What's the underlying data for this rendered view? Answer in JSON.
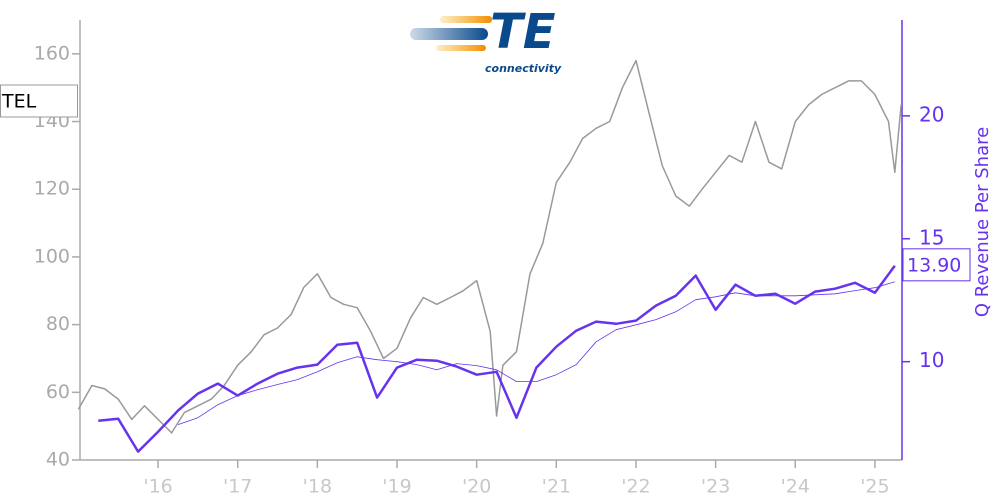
{
  "chart_data": {
    "type": "line",
    "logo": {
      "mark": "TE",
      "tagline": "connectivity"
    },
    "ticker": "TEL",
    "y2label": "Q Revenue Per Share",
    "annotation": "13.90",
    "xlim": [
      2015.02,
      2025.34
    ],
    "xticks": [
      {
        "value": 2016,
        "label": "'16"
      },
      {
        "value": 2017,
        "label": "'17"
      },
      {
        "value": 2018,
        "label": "'18"
      },
      {
        "value": 2019,
        "label": "'19"
      },
      {
        "value": 2020,
        "label": "'20"
      },
      {
        "value": 2021,
        "label": "'21"
      },
      {
        "value": 2022,
        "label": "'22"
      },
      {
        "value": 2023,
        "label": "'23"
      },
      {
        "value": 2024,
        "label": "'24"
      },
      {
        "value": 2025,
        "label": "'25"
      }
    ],
    "ylim": [
      40,
      170
    ],
    "yticks": [
      40,
      60,
      80,
      100,
      120,
      140,
      160
    ],
    "y2lim": [
      6,
      23.9
    ],
    "y2ticks": [
      10,
      15,
      20
    ],
    "series": [
      {
        "color": "#999999",
        "width": 1.5,
        "x": [
          2015.0,
          2015.17,
          2015.33,
          2015.5,
          2015.67,
          2015.83,
          2016.0,
          2016.17,
          2016.33,
          2016.5,
          2016.67,
          2016.83,
          2017.0,
          2017.17,
          2017.33,
          2017.5,
          2017.67,
          2017.83,
          2018.0,
          2018.17,
          2018.33,
          2018.5,
          2018.67,
          2018.83,
          2019.0,
          2019.17,
          2019.33,
          2019.5,
          2019.67,
          2019.83,
          2020.0,
          2020.17,
          2020.25,
          2020.33,
          2020.5,
          2020.67,
          2020.83,
          2021.0,
          2021.17,
          2021.33,
          2021.5,
          2021.67,
          2021.83,
          2022.0,
          2022.17,
          2022.33,
          2022.5,
          2022.67,
          2022.83,
          2023.0,
          2023.17,
          2023.33,
          2023.5,
          2023.67,
          2023.83,
          2024.0,
          2024.17,
          2024.33,
          2024.5,
          2024.67,
          2024.83,
          2025.0,
          2025.17,
          2025.25,
          2025.33
        ],
        "values": [
          55,
          62,
          61,
          58,
          52,
          56,
          52,
          48,
          54,
          56,
          58,
          62,
          68,
          72,
          77,
          79,
          83,
          91,
          95,
          88,
          86,
          85,
          78,
          70,
          73,
          82,
          88,
          86,
          88,
          90,
          93,
          78,
          53,
          68,
          72,
          95,
          104,
          122,
          128,
          135,
          138,
          140,
          150,
          158,
          142,
          127,
          118,
          115,
          120,
          125,
          130,
          128,
          140,
          128,
          126,
          140,
          145,
          148,
          150,
          152,
          152,
          148,
          140,
          125,
          145
        ]
      },
      {
        "color": "#6633ee",
        "width": 2.5,
        "axis": "y2",
        "x": [
          2015.25,
          2015.5,
          2015.75,
          2016.0,
          2016.25,
          2016.5,
          2016.75,
          2017.0,
          2017.25,
          2017.5,
          2017.75,
          2018.0,
          2018.25,
          2018.5,
          2018.75,
          2019.0,
          2019.25,
          2019.5,
          2019.75,
          2020.0,
          2020.25,
          2020.5,
          2020.75,
          2021.0,
          2021.25,
          2021.5,
          2021.75,
          2022.0,
          2022.25,
          2022.5,
          2022.75,
          2023.0,
          2023.25,
          2023.5,
          2023.75,
          2024.0,
          2024.25,
          2024.5,
          2024.75,
          2025.0,
          2025.25
        ],
        "values": [
          7.6,
          7.68,
          6.34,
          7.15,
          8.01,
          8.7,
          9.11,
          8.62,
          9.11,
          9.51,
          9.76,
          9.88,
          10.69,
          10.77,
          8.54,
          9.76,
          10.08,
          10.04,
          9.8,
          9.47,
          9.59,
          7.72,
          9.76,
          10.61,
          11.26,
          11.63,
          11.54,
          11.67,
          12.28,
          12.68,
          13.5,
          12.11,
          13.13,
          12.68,
          12.76,
          12.36,
          12.85,
          12.97,
          13.21,
          12.8,
          13.9
        ]
      },
      {
        "color": "#6633ee",
        "width": 0.8,
        "axis": "y2",
        "x": [
          2015.25,
          2015.5,
          2015.75,
          2016.0,
          2016.25,
          2016.5,
          2016.75,
          2017.0,
          2017.25,
          2017.5,
          2017.75,
          2018.0,
          2018.25,
          2018.5,
          2018.75,
          2019.0,
          2019.25,
          2019.5,
          2019.75,
          2020.0,
          2020.25,
          2020.5,
          2020.75,
          2021.0,
          2021.25,
          2021.5,
          2021.75,
          2022.0,
          2022.25,
          2022.5,
          2022.75,
          2023.0,
          2023.25,
          2023.5,
          2023.75,
          2024.0,
          2024.25,
          2024.5,
          2024.75,
          2025.0,
          2025.25
        ],
        "values": [
          null,
          null,
          null,
          null,
          7.44,
          7.72,
          8.25,
          8.62,
          8.86,
          9.07,
          9.27,
          9.59,
          9.96,
          10.2,
          10.08,
          10.0,
          9.88,
          9.67,
          9.92,
          9.84,
          9.67,
          9.19,
          9.19,
          9.47,
          9.88,
          10.81,
          11.3,
          11.5,
          11.71,
          12.03,
          12.52,
          12.64,
          12.8,
          12.68,
          12.68,
          12.68,
          12.72,
          12.76,
          12.89,
          13.01,
          13.25
        ]
      }
    ]
  }
}
